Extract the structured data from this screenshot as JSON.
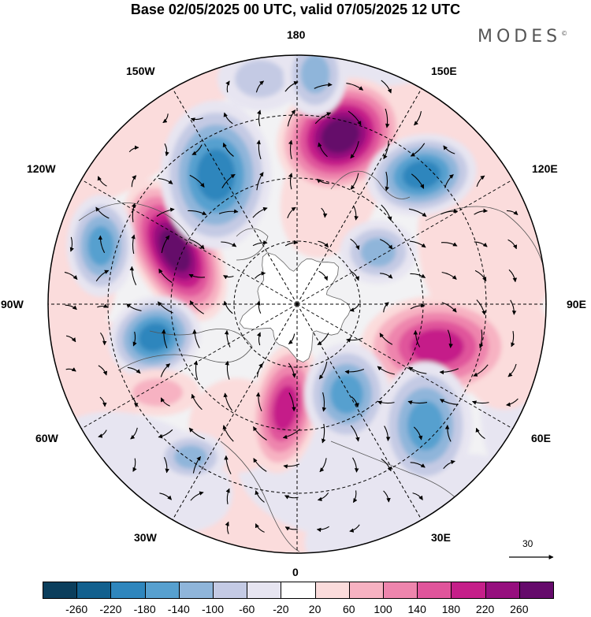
{
  "title": "Base 02/05/2025 00 UTC, valid 07/05/2025 12 UTC",
  "brand": "MODES",
  "brand_mark": "©",
  "longitude_labels": {
    "lon_180": "180",
    "lon_150e": "150E",
    "lon_120e": "120E",
    "lon_90e": "90E",
    "lon_60e": "60E",
    "lon_30e": "30E",
    "lon_0": "0",
    "lon_30w": "30W",
    "lon_60w": "60W",
    "lon_90w": "90W",
    "lon_120w": "120W",
    "lon_150w": "150W"
  },
  "reference_vector": {
    "label": "30"
  },
  "colorbar": {
    "labels": [
      "-260",
      "-220",
      "-180",
      "-140",
      "-100",
      "-60",
      "-20",
      "20",
      "60",
      "100",
      "140",
      "180",
      "220",
      "260"
    ],
    "colors": [
      "#0b3e5c",
      "#12608e",
      "#2f86bd",
      "#57a0cf",
      "#8fb5da",
      "#c4cae4",
      "#e7e5f1",
      "#ffffff",
      "#fbdcdc",
      "#f7b2c2",
      "#ee85ad",
      "#e0559b",
      "#c51f89",
      "#960f7e",
      "#650a6b"
    ]
  },
  "anomaly_palette": {
    "neg": [
      "#e7e5f1",
      "#c4cae4",
      "#8fb5da",
      "#57a0cf",
      "#2f86bd",
      "#12608e"
    ],
    "pos": [
      "#fbdcdc",
      "#f7b2c2",
      "#ee85ad",
      "#e0559b",
      "#c51f89",
      "#960f7e",
      "#650a6b"
    ]
  }
}
